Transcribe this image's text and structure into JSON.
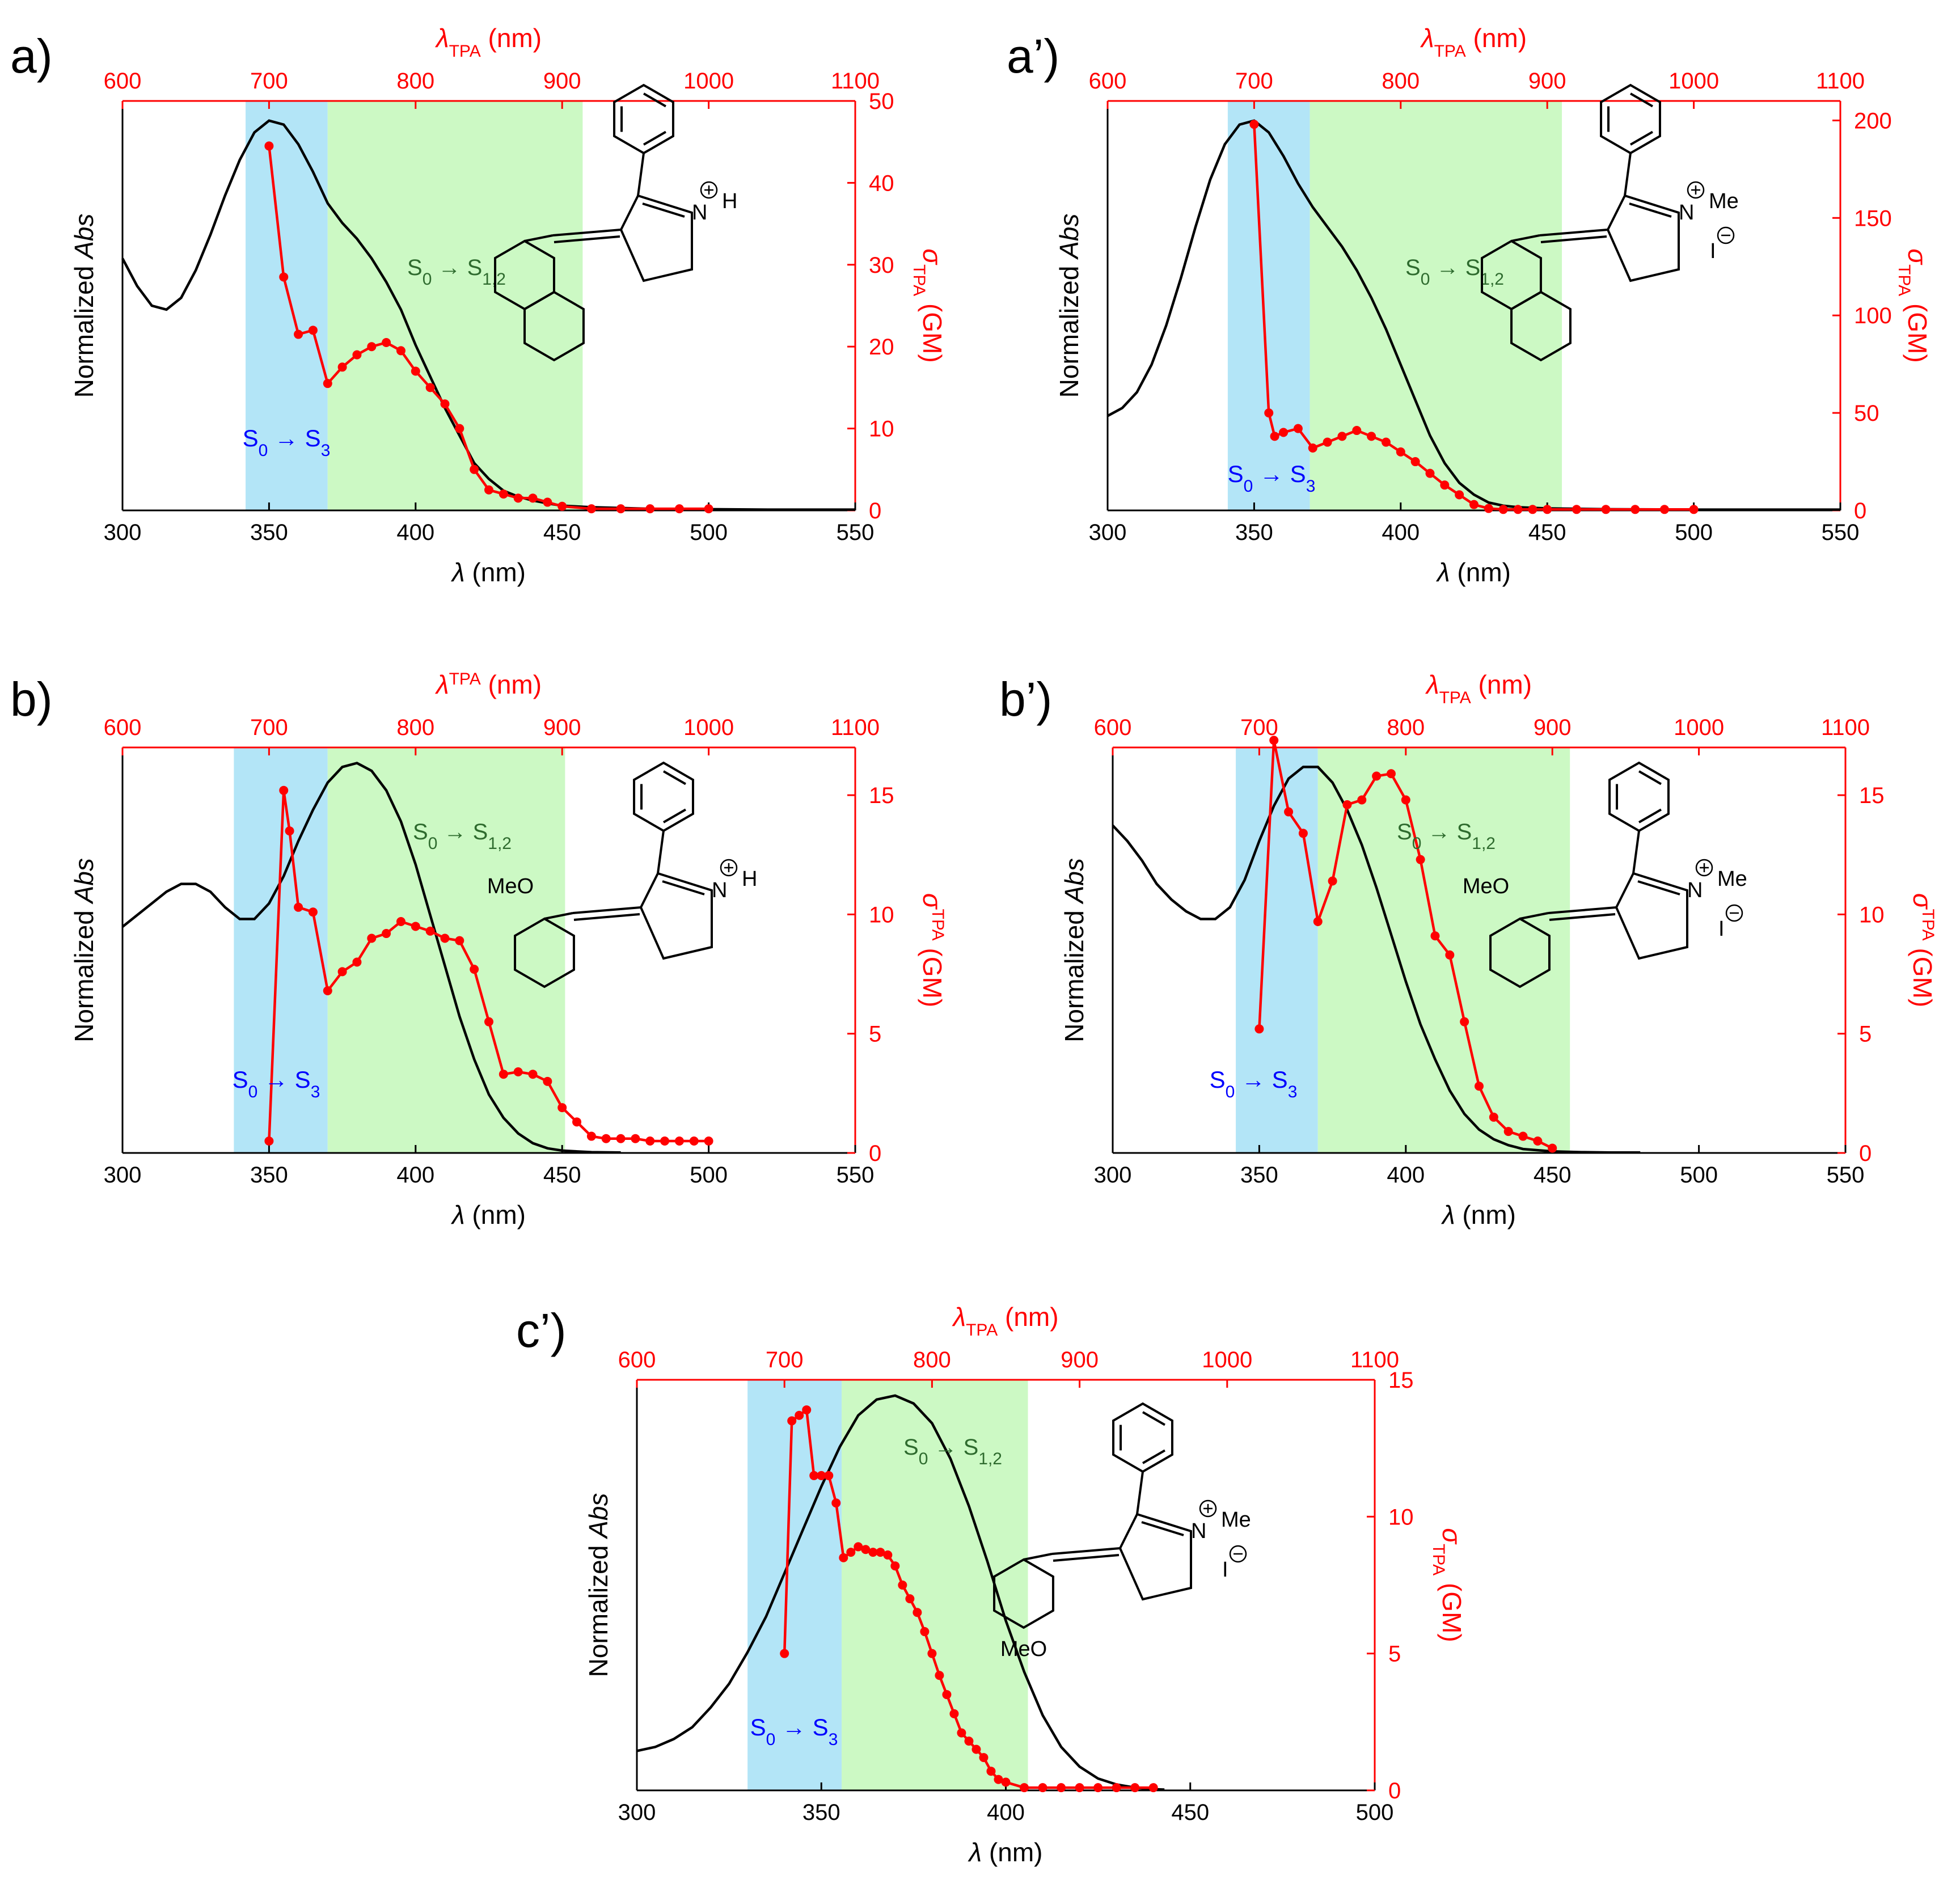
{
  "colors": {
    "abs_line": "#000000",
    "tpa_line": "#ff0000",
    "s3_band": "#b3e5f7",
    "s12_band": "#ccf9c4",
    "s3_text": "#0000ff",
    "s12_text": "#2e6b2e"
  },
  "chart_data": [
    {
      "type": "line",
      "panel_label": "a)",
      "xlabel": "λ (nm)",
      "ylabel": "Normalized Abs",
      "x2label": "λTPA (nm)",
      "y2label": "σTPA (GM)",
      "xlim": [
        300,
        550
      ],
      "xticks": [
        "300",
        "350",
        "400",
        "450",
        "500",
        "550"
      ],
      "x2lim": [
        600,
        1100
      ],
      "x2ticks": [
        "600",
        "700",
        "800",
        "900",
        "1000",
        "1100"
      ],
      "y2lim": [
        0,
        50
      ],
      "y2ticks": [
        "0",
        "10",
        "20",
        "30",
        "40",
        "50"
      ],
      "bands": [
        {
          "label": "S0 → S3",
          "from": 342,
          "to": 370
        },
        {
          "label": "S0 → S1,2",
          "from": 370,
          "to": 457
        }
      ],
      "abs_series": {
        "name": "Normalized Abs",
        "x": [
          300,
          305,
          310,
          315,
          320,
          325,
          330,
          335,
          340,
          345,
          350,
          355,
          360,
          365,
          370,
          375,
          380,
          385,
          390,
          395,
          400,
          405,
          410,
          415,
          420,
          425,
          430,
          435,
          440,
          445,
          450,
          460,
          470,
          480,
          500,
          520,
          550
        ],
        "y": [
          0.64,
          0.57,
          0.52,
          0.51,
          0.54,
          0.61,
          0.7,
          0.8,
          0.89,
          0.96,
          0.99,
          0.98,
          0.93,
          0.86,
          0.78,
          0.73,
          0.69,
          0.64,
          0.58,
          0.51,
          0.42,
          0.34,
          0.26,
          0.19,
          0.12,
          0.08,
          0.05,
          0.035,
          0.025,
          0.018,
          0.012,
          0.008,
          0.006,
          0.004,
          0.003,
          0.002,
          0.002
        ]
      },
      "tpa_series": {
        "name": "σTPA (GM)",
        "x": [
          350,
          355,
          360,
          365,
          370,
          375,
          380,
          385,
          390,
          395,
          400,
          405,
          410,
          415,
          420,
          425,
          430,
          435,
          440,
          445,
          450,
          460,
          470,
          480,
          490,
          500
        ],
        "y": [
          44.5,
          28.5,
          21.5,
          22.0,
          15.5,
          17.5,
          19.0,
          20.0,
          20.5,
          19.5,
          17.0,
          15.0,
          13.0,
          10.0,
          5.0,
          2.5,
          2.0,
          1.5,
          1.5,
          1.0,
          0.5,
          0.2,
          0.2,
          0.2,
          0.2,
          0.2
        ]
      },
      "annotations": {
        "band_s3": "S0 → S3",
        "band_s12": "S0 → S1,2"
      },
      "structure": {
        "variant": "naphthyl",
        "n_label": "H",
        "counterion": false
      }
    },
    {
      "type": "line",
      "panel_label": "a’)",
      "xlabel": "λ (nm)",
      "ylabel": "Normalized Abs",
      "x2label": "λTPA (nm)",
      "y2label": "σTPA (GM)",
      "xlim": [
        300,
        550
      ],
      "xticks": [
        "300",
        "350",
        "400",
        "450",
        "500",
        "550"
      ],
      "x2lim": [
        600,
        1100
      ],
      "x2ticks": [
        "600",
        "700",
        "800",
        "900",
        "1000",
        "1100"
      ],
      "y2lim": [
        0,
        210
      ],
      "y2ticks": [
        "0",
        "50",
        "100",
        "150",
        "200"
      ],
      "bands": [
        {
          "label": "S0 → S3",
          "from": 341,
          "to": 369
        },
        {
          "label": "S0 → S1,2",
          "from": 369,
          "to": 455
        }
      ],
      "abs_series": {
        "name": "Normalized Abs",
        "x": [
          300,
          305,
          310,
          315,
          320,
          325,
          330,
          335,
          340,
          345,
          350,
          355,
          360,
          365,
          370,
          375,
          380,
          385,
          390,
          395,
          400,
          405,
          410,
          415,
          420,
          425,
          430,
          435,
          440,
          450,
          470,
          500,
          550
        ],
        "y": [
          0.24,
          0.26,
          0.3,
          0.37,
          0.47,
          0.59,
          0.72,
          0.84,
          0.93,
          0.98,
          0.99,
          0.96,
          0.9,
          0.83,
          0.77,
          0.72,
          0.67,
          0.61,
          0.54,
          0.46,
          0.37,
          0.28,
          0.19,
          0.12,
          0.07,
          0.04,
          0.02,
          0.012,
          0.008,
          0.005,
          0.003,
          0.002,
          0.002
        ]
      },
      "tpa_series": {
        "name": "σTPA (GM)",
        "x": [
          350,
          355,
          357,
          360,
          365,
          370,
          375,
          380,
          385,
          390,
          395,
          400,
          405,
          410,
          415,
          420,
          425,
          430,
          435,
          440,
          445,
          450,
          460,
          470,
          480,
          490,
          500
        ],
        "y": [
          198,
          50,
          38,
          40,
          42,
          32,
          35,
          38,
          41,
          38,
          35,
          30,
          25,
          19,
          13,
          8,
          3,
          1,
          0.5,
          0.5,
          0.5,
          0.5,
          0.5,
          0.5,
          0.5,
          0.5,
          0.5
        ]
      },
      "annotations": {
        "band_s3": "S0 → S3",
        "band_s12": "S0 → S1,2"
      },
      "structure": {
        "variant": "naphthyl",
        "n_label": "Me",
        "counterion": true,
        "counterion_label": "I"
      }
    },
    {
      "type": "line",
      "panel_label": "b)",
      "xlabel": "λ (nm)",
      "ylabel": "Normalized Abs",
      "x2label": "λTPA (nm)",
      "y2label": "σTPA (GM)",
      "xlim": [
        300,
        550
      ],
      "xticks": [
        "300",
        "350",
        "400",
        "450",
        "500",
        "550"
      ],
      "x2lim": [
        600,
        1100
      ],
      "x2ticks": [
        "600",
        "700",
        "800",
        "900",
        "1000",
        "1100"
      ],
      "y2lim": [
        0,
        17
      ],
      "y2ticks": [
        "0",
        "5",
        "10",
        "15"
      ],
      "bands": [
        {
          "label": "S0 → S3",
          "from": 338,
          "to": 370
        },
        {
          "label": "S0 → S1,2",
          "from": 370,
          "to": 451
        }
      ],
      "abs_series": {
        "name": "Normalized Abs",
        "x": [
          300,
          305,
          310,
          315,
          320,
          325,
          330,
          335,
          340,
          345,
          350,
          355,
          360,
          365,
          370,
          375,
          380,
          385,
          390,
          395,
          400,
          405,
          410,
          415,
          420,
          425,
          430,
          435,
          440,
          445,
          450,
          460,
          470
        ],
        "y": [
          0.58,
          0.61,
          0.64,
          0.67,
          0.69,
          0.69,
          0.67,
          0.63,
          0.6,
          0.6,
          0.64,
          0.71,
          0.8,
          0.88,
          0.95,
          0.99,
          1.0,
          0.98,
          0.93,
          0.85,
          0.74,
          0.61,
          0.48,
          0.35,
          0.24,
          0.15,
          0.09,
          0.05,
          0.025,
          0.012,
          0.006,
          0.002,
          0.001
        ]
      },
      "tpa_series": {
        "name": "σTPA (GM)",
        "x": [
          350,
          355,
          357,
          360,
          365,
          370,
          375,
          380,
          385,
          390,
          395,
          400,
          405,
          410,
          415,
          420,
          425,
          430,
          435,
          440,
          445,
          450,
          455,
          460,
          465,
          470,
          475,
          480,
          485,
          490,
          495,
          500
        ],
        "y": [
          0.5,
          15.2,
          13.5,
          10.3,
          10.1,
          6.8,
          7.6,
          8.0,
          9.0,
          9.2,
          9.7,
          9.5,
          9.3,
          9.0,
          8.9,
          7.7,
          5.5,
          3.3,
          3.4,
          3.3,
          3.0,
          1.9,
          1.3,
          0.7,
          0.6,
          0.6,
          0.6,
          0.5,
          0.5,
          0.5,
          0.5,
          0.5
        ]
      },
      "annotations": {
        "band_s3": "S0 → S3",
        "band_s12": "S0 → S1,2"
      },
      "structure": {
        "variant": "o-methoxyphenyl",
        "n_label": "H",
        "counterion": false,
        "meo_label": "MeO"
      }
    },
    {
      "type": "line",
      "panel_label": "b’)",
      "xlabel": "λ (nm)",
      "ylabel": "Normalized Abs",
      "x2label": "λTPA (nm)",
      "y2label": "σTPA (GM)",
      "xlim": [
        300,
        550
      ],
      "xticks": [
        "300",
        "350",
        "400",
        "450",
        "500",
        "550"
      ],
      "x2lim": [
        600,
        1100
      ],
      "x2ticks": [
        "600",
        "700",
        "800",
        "900",
        "1000",
        "1100"
      ],
      "y2lim": [
        0,
        17
      ],
      "y2ticks": [
        "0",
        "5",
        "10",
        "15"
      ],
      "bands": [
        {
          "label": "S0 → S3",
          "from": 342,
          "to": 370
        },
        {
          "label": "S0 → S1,2",
          "from": 370,
          "to": 456
        }
      ],
      "abs_series": {
        "name": "Normalized Abs",
        "x": [
          300,
          305,
          310,
          315,
          320,
          325,
          330,
          335,
          340,
          345,
          350,
          355,
          360,
          365,
          370,
          375,
          380,
          385,
          390,
          395,
          400,
          405,
          410,
          415,
          420,
          425,
          430,
          435,
          440,
          450,
          460,
          470,
          480
        ],
        "y": [
          0.84,
          0.8,
          0.75,
          0.69,
          0.65,
          0.62,
          0.6,
          0.6,
          0.63,
          0.7,
          0.8,
          0.89,
          0.96,
          0.99,
          0.99,
          0.95,
          0.88,
          0.79,
          0.68,
          0.56,
          0.44,
          0.33,
          0.24,
          0.16,
          0.1,
          0.06,
          0.035,
          0.02,
          0.01,
          0.004,
          0.002,
          0.001,
          0.001
        ]
      },
      "tpa_series": {
        "name": "σTPA (GM)",
        "x": [
          350,
          355,
          360,
          365,
          370,
          375,
          380,
          385,
          390,
          395,
          400,
          405,
          410,
          415,
          420,
          425,
          430,
          435,
          440,
          445,
          450
        ],
        "y": [
          5.2,
          17.3,
          14.3,
          13.4,
          9.7,
          11.4,
          14.6,
          14.8,
          15.8,
          15.9,
          14.8,
          12.3,
          9.1,
          8.3,
          5.5,
          2.8,
          1.5,
          0.9,
          0.7,
          0.5,
          0.2
        ]
      },
      "annotations": {
        "band_s3": "S0 → S3",
        "band_s12": "S0 → S1,2"
      },
      "structure": {
        "variant": "o-methoxyphenyl",
        "n_label": "Me",
        "counterion": true,
        "counterion_label": "I",
        "meo_label": "MeO"
      }
    },
    {
      "type": "line",
      "panel_label": "c’)",
      "xlabel": "λ (nm)",
      "ylabel": "Normalized Abs",
      "x2label": "λTPA (nm)",
      "y2label": "σTPA (GM)",
      "xlim": [
        300,
        500
      ],
      "xticks": [
        "300",
        "350",
        "400",
        "450",
        "500"
      ],
      "x2lim": [
        600,
        1100
      ],
      "x2ticks": [
        "600",
        "700",
        "800",
        "900",
        "1000",
        "1100"
      ],
      "y2lim": [
        0,
        15
      ],
      "y2ticks": [
        "0",
        "5",
        "10",
        "15"
      ],
      "bands": [
        {
          "label": "S0 → S3",
          "from": 330,
          "to": 355.5
        },
        {
          "label": "S0 → S1,2",
          "from": 355.5,
          "to": 406
        }
      ],
      "abs_series": {
        "name": "Normalized Abs",
        "x": [
          300,
          305,
          310,
          315,
          320,
          325,
          330,
          335,
          340,
          345,
          350,
          355,
          360,
          365,
          370,
          375,
          380,
          385,
          390,
          395,
          400,
          405,
          410,
          415,
          420,
          425,
          430,
          435,
          440,
          443
        ],
        "y": [
          0.1,
          0.11,
          0.13,
          0.16,
          0.21,
          0.27,
          0.35,
          0.44,
          0.55,
          0.66,
          0.77,
          0.87,
          0.95,
          0.99,
          1.0,
          0.98,
          0.93,
          0.84,
          0.72,
          0.58,
          0.43,
          0.3,
          0.19,
          0.11,
          0.06,
          0.03,
          0.015,
          0.007,
          0.003,
          0.002
        ]
      },
      "tpa_series": {
        "name": "σTPA (GM)",
        "x": [
          340,
          342,
          344,
          346,
          348,
          350,
          352,
          354,
          356,
          358,
          360,
          362,
          364,
          366,
          368,
          370,
          372,
          374,
          376,
          378,
          380,
          382,
          384,
          386,
          388,
          390,
          392,
          394,
          396,
          398,
          400,
          405,
          410,
          415,
          420,
          425,
          430,
          435,
          440
        ],
        "y": [
          5.0,
          13.5,
          13.7,
          13.9,
          11.5,
          11.5,
          11.5,
          10.5,
          8.5,
          8.7,
          8.9,
          8.8,
          8.7,
          8.7,
          8.6,
          8.2,
          7.5,
          7.0,
          6.5,
          5.8,
          5.0,
          4.2,
          3.5,
          2.8,
          2.1,
          1.8,
          1.5,
          1.2,
          0.7,
          0.4,
          0.3,
          0.1,
          0.1,
          0.1,
          0.1,
          0.1,
          0.1,
          0.1,
          0.1
        ]
      },
      "annotations": {
        "band_s3": "S0 → S3",
        "band_s12": "S0 → S1,2"
      },
      "structure": {
        "variant": "p-methoxyphenyl",
        "n_label": "Me",
        "counterion": true,
        "counterion_label": "I",
        "meo_label": "MeO"
      }
    }
  ]
}
